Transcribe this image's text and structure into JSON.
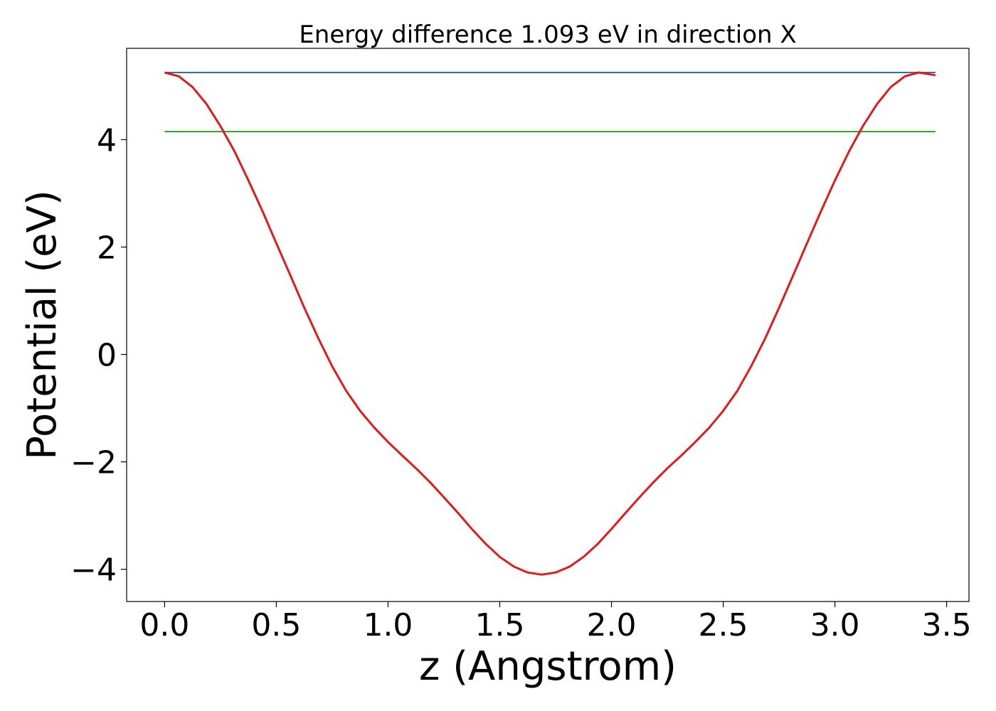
{
  "chart_data": {
    "type": "line",
    "title": "Energy difference 1.093 eV in direction X",
    "xlabel": "z (Angstrom)",
    "ylabel": "Potential (eV)",
    "xlim": [
      -0.17,
      3.6
    ],
    "ylim": [
      -4.6,
      5.7
    ],
    "xticks": [
      {
        "value": 0.0,
        "label": "0.0"
      },
      {
        "value": 0.5,
        "label": "0.5"
      },
      {
        "value": 1.0,
        "label": "1.0"
      },
      {
        "value": 1.5,
        "label": "1.5"
      },
      {
        "value": 2.0,
        "label": "2.0"
      },
      {
        "value": 2.5,
        "label": "2.5"
      },
      {
        "value": 3.0,
        "label": "3.0"
      },
      {
        "value": 3.5,
        "label": "3.5"
      }
    ],
    "yticks": [
      {
        "value": 4,
        "label": "4"
      },
      {
        "value": 2,
        "label": "2"
      },
      {
        "value": 0,
        "label": "0"
      },
      {
        "value": -2,
        "label": "−2"
      },
      {
        "value": -4,
        "label": "−4"
      }
    ],
    "grid": false,
    "legend": "none",
    "series": [
      {
        "color": "#1f77b4",
        "x": [
          0.0,
          3.45
        ],
        "y": [
          5.25,
          5.25
        ]
      },
      {
        "color": "#2ca02c",
        "x": [
          0.0,
          3.45
        ],
        "y": [
          4.15,
          4.15
        ]
      },
      {
        "color": "#e31a1c",
        "x": [
          0.0,
          0.063,
          0.125,
          0.188,
          0.25,
          0.313,
          0.375,
          0.438,
          0.5,
          0.563,
          0.625,
          0.688,
          0.75,
          0.813,
          0.875,
          0.938,
          1.0,
          1.063,
          1.125,
          1.188,
          1.25,
          1.313,
          1.375,
          1.438,
          1.5,
          1.563,
          1.625,
          1.688,
          1.75,
          1.813,
          1.875,
          1.938,
          2.0,
          2.063,
          2.125,
          2.188,
          2.25,
          2.313,
          2.375,
          2.438,
          2.5,
          2.563,
          2.625,
          2.688,
          2.75,
          2.813,
          2.875,
          2.938,
          3.0,
          3.063,
          3.125,
          3.188,
          3.25,
          3.313,
          3.375,
          3.45
        ],
        "y": [
          5.25,
          5.18,
          4.98,
          4.66,
          4.25,
          3.78,
          3.24,
          2.67,
          2.07,
          1.47,
          0.87,
          0.3,
          -0.22,
          -0.68,
          -1.05,
          -1.36,
          -1.63,
          -1.88,
          -2.12,
          -2.38,
          -2.66,
          -2.95,
          -3.25,
          -3.53,
          -3.77,
          -3.95,
          -4.06,
          -4.1,
          -4.06,
          -3.95,
          -3.77,
          -3.53,
          -3.25,
          -2.95,
          -2.66,
          -2.38,
          -2.12,
          -1.88,
          -1.63,
          -1.36,
          -1.05,
          -0.68,
          -0.22,
          0.3,
          0.87,
          1.47,
          2.07,
          2.67,
          3.24,
          3.78,
          4.25,
          4.66,
          4.98,
          5.18,
          5.25,
          5.2
        ]
      }
    ]
  }
}
